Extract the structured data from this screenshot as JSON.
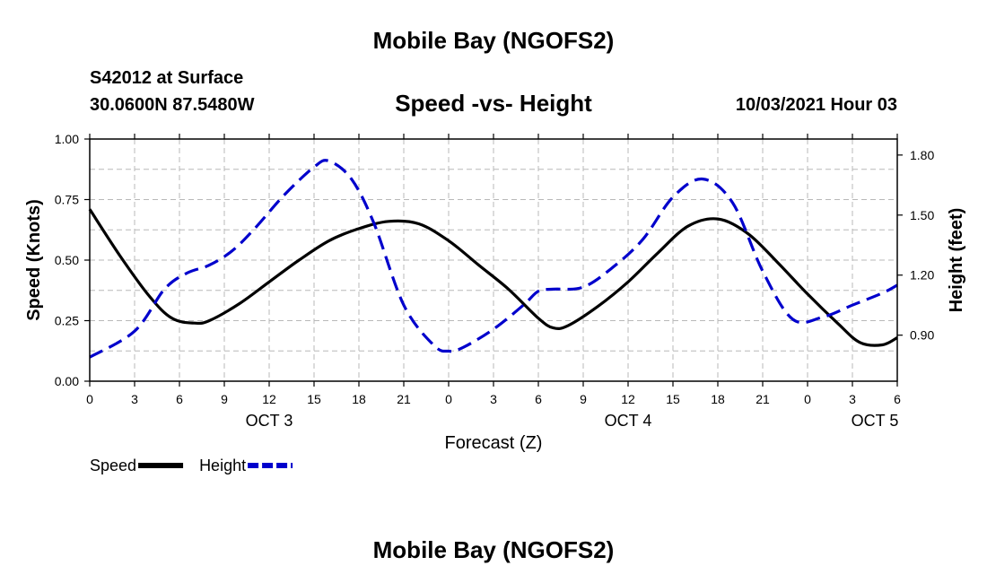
{
  "page": {
    "top_title": "Mobile Bay (NGOFS2)",
    "bottom_title": "Mobile Bay (NGOFS2)",
    "station": "S42012 at Surface",
    "coordinates": "30.0600N  87.5480W",
    "chart_title": "Speed -vs- Height",
    "datetime": "10/03/2021 Hour 03"
  },
  "chart_data": {
    "type": "line",
    "title": "Speed -vs- Height",
    "xlabel": "Forecast (Z)",
    "ylabel_left": "Speed (Knots)",
    "ylabel_right": "Height (feet)",
    "xlim": [
      0,
      54
    ],
    "ylim_left": [
      0,
      1.0
    ],
    "ylim_right": [
      0.67,
      1.88
    ],
    "x_ticks": [
      0,
      3,
      6,
      9,
      12,
      15,
      18,
      21,
      24,
      27,
      30,
      33,
      36,
      39,
      42,
      45,
      48,
      51,
      54
    ],
    "x_tick_labels": [
      "0",
      "3",
      "6",
      "9",
      "12",
      "15",
      "18",
      "21",
      "0",
      "3",
      "6",
      "9",
      "12",
      "15",
      "18",
      "21",
      "0",
      "3",
      "6"
    ],
    "y_left_ticks": [
      0.0,
      0.25,
      0.5,
      0.75,
      1.0
    ],
    "y_left_tick_labels": [
      "0.00",
      "0.25",
      "0.50",
      "0.75",
      "1.00"
    ],
    "y_right_ticks": [
      0.9,
      1.2,
      1.5,
      1.8
    ],
    "y_right_tick_labels": [
      "0.90",
      "1.20",
      "1.50",
      "1.80"
    ],
    "day_labels": [
      {
        "x": 12,
        "label": "OCT 3"
      },
      {
        "x": 36,
        "label": "OCT 4"
      },
      {
        "x": 52.5,
        "label": "OCT 5"
      }
    ],
    "grid": true,
    "legend_position": "bottom-left",
    "series": [
      {
        "name": "Speed",
        "axis": "left",
        "color": "#000000",
        "style": "solid",
        "x": [
          0,
          2,
          4,
          5.5,
          7,
          8,
          10,
          12,
          14,
          16,
          18,
          20,
          22,
          24,
          26,
          28,
          30,
          31,
          32,
          34,
          36,
          38,
          40,
          42,
          44,
          46,
          48,
          50,
          51.5,
          53,
          54
        ],
        "y": [
          0.71,
          0.52,
          0.35,
          0.26,
          0.24,
          0.25,
          0.32,
          0.41,
          0.5,
          0.58,
          0.63,
          0.66,
          0.65,
          0.58,
          0.48,
          0.38,
          0.26,
          0.22,
          0.23,
          0.31,
          0.41,
          0.53,
          0.64,
          0.67,
          0.61,
          0.49,
          0.36,
          0.24,
          0.16,
          0.15,
          0.18
        ]
      },
      {
        "name": "Height",
        "axis": "right",
        "color": "#0000cc",
        "style": "dashed",
        "x": [
          0,
          3,
          5,
          6.5,
          8,
          9.5,
          11,
          13,
          15,
          16,
          17.5,
          19,
          21,
          23,
          24,
          25,
          27,
          29,
          30,
          31,
          33,
          35,
          37,
          39,
          41,
          43,
          45,
          47,
          49,
          51,
          53,
          54
        ],
        "y": [
          0.79,
          0.92,
          1.13,
          1.21,
          1.25,
          1.32,
          1.43,
          1.6,
          1.74,
          1.77,
          1.68,
          1.46,
          1.05,
          0.85,
          0.82,
          0.84,
          0.93,
          1.05,
          1.12,
          1.13,
          1.14,
          1.24,
          1.38,
          1.59,
          1.68,
          1.56,
          1.22,
          0.98,
          0.99,
          1.05,
          1.11,
          1.15
        ]
      }
    ]
  }
}
